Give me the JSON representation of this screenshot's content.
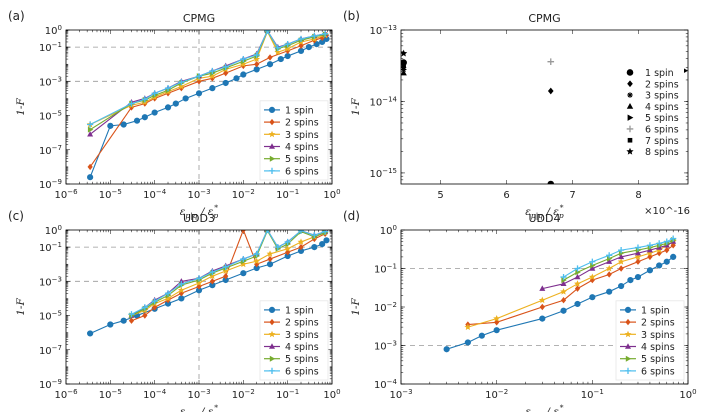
{
  "chart_data": [
    {
      "id": "a",
      "type": "line",
      "label": "(a)",
      "title": "CPMG",
      "xlabel": "ε_{p|q} / ε*_p",
      "ylabel": "1-F",
      "xscale": "log",
      "yscale": "log",
      "xlim": [
        1e-06,
        1
      ],
      "ylim": [
        1e-09,
        1
      ],
      "xticks": [
        1e-06,
        1e-05,
        0.0001,
        0.001,
        0.01,
        0.1,
        1
      ],
      "xtick_labels": [
        "10^-6",
        "10^-5",
        "10^-4",
        "10^-3",
        "10^-2",
        "10^-1",
        "10^0"
      ],
      "yticks": [
        1e-09,
        1e-07,
        1e-05,
        0.001,
        0.1,
        1
      ],
      "ytick_labels": [
        "10^-9",
        "10^-7",
        "10^-5",
        "10^-3",
        "10^-1",
        "10^0"
      ],
      "hlines": [
        0.1,
        0.001
      ],
      "vlines": [
        0.001
      ],
      "legend_position": "right",
      "series": [
        {
          "name": "1 spin",
          "color": "#1f77b4",
          "marker": "circle",
          "x": [
            3.5e-06,
            1e-05,
            2e-05,
            4e-05,
            6e-05,
            0.0001,
            0.0002,
            0.0003,
            0.0005,
            0.001,
            0.002,
            0.004,
            0.007,
            0.01,
            0.02,
            0.04,
            0.07,
            0.1,
            0.2,
            0.3,
            0.45,
            0.6,
            0.75
          ],
          "y": [
            2.5e-09,
            2.5e-06,
            3e-06,
            5e-06,
            8e-06,
            1.5e-05,
            3e-05,
            5e-05,
            0.0001,
            0.0002,
            0.0004,
            0.0008,
            0.0015,
            0.0025,
            0.005,
            0.01,
            0.02,
            0.03,
            0.06,
            0.1,
            0.15,
            0.2,
            0.3
          ]
        },
        {
          "name": "2 spins",
          "color": "#d95319",
          "marker": "diamond",
          "x": [
            3.5e-06,
            3e-05,
            6e-05,
            0.0001,
            0.0002,
            0.0004,
            0.001,
            0.002,
            0.004,
            0.01,
            0.02,
            0.04,
            0.1,
            0.2,
            0.4,
            0.6,
            0.75
          ],
          "y": [
            1e-08,
            3e-05,
            5e-05,
            0.0001,
            0.0002,
            0.0004,
            0.001,
            0.0015,
            0.003,
            0.008,
            0.01,
            0.025,
            0.06,
            0.12,
            0.25,
            0.35,
            0.5
          ]
        },
        {
          "name": "3 spins",
          "color": "#edb120",
          "marker": "star",
          "x": [
            3.5e-06,
            3e-05,
            6e-05,
            0.0001,
            0.0002,
            0.0004,
            0.001,
            0.002,
            0.004,
            0.01,
            0.02,
            0.035,
            0.06,
            0.1,
            0.2,
            0.4,
            0.7
          ],
          "y": [
            3e-06,
            4e-05,
            6e-05,
            0.00012,
            0.00025,
            0.0005,
            0.0015,
            0.002,
            0.005,
            0.01,
            0.02,
            0.8,
            0.05,
            0.08,
            0.2,
            0.3,
            0.5
          ]
        },
        {
          "name": "4 spins",
          "color": "#7e2f8e",
          "marker": "triangle",
          "x": [
            3.5e-06,
            3e-05,
            6e-05,
            0.0001,
            0.0002,
            0.0004,
            0.001,
            0.002,
            0.004,
            0.01,
            0.02,
            0.035,
            0.06,
            0.1,
            0.2,
            0.4,
            0.7
          ],
          "y": [
            8e-07,
            6e-05,
            0.0001,
            0.0002,
            0.0004,
            0.001,
            0.002,
            0.004,
            0.008,
            0.02,
            0.04,
            0.9,
            0.1,
            0.15,
            0.3,
            0.45,
            0.6
          ]
        },
        {
          "name": "5 spins",
          "color": "#77ac30",
          "marker": "triangle-right",
          "x": [
            3.5e-06,
            3e-05,
            6e-05,
            0.0001,
            0.0002,
            0.0004,
            0.001,
            0.002,
            0.004,
            0.01,
            0.02,
            0.035,
            0.06,
            0.1,
            0.2,
            0.4,
            0.7
          ],
          "y": [
            1.5e-06,
            5e-05,
            8e-05,
            0.00015,
            0.0003,
            0.0008,
            0.002,
            0.003,
            0.006,
            0.015,
            0.03,
            0.85,
            0.08,
            0.12,
            0.25,
            0.4,
            0.55
          ]
        },
        {
          "name": "6 spins",
          "color": "#4dbeee",
          "marker": "plus",
          "x": [
            3.5e-06,
            3e-05,
            6e-05,
            0.0001,
            0.0002,
            0.0004,
            0.001,
            0.002,
            0.004,
            0.01,
            0.02,
            0.035,
            0.06,
            0.1,
            0.2,
            0.4,
            0.7
          ],
          "y": [
            3e-06,
            5e-05,
            9e-05,
            0.0002,
            0.0004,
            0.0009,
            0.002,
            0.004,
            0.007,
            0.02,
            0.035,
            0.9,
            0.09,
            0.15,
            0.3,
            0.45,
            0.6
          ]
        }
      ]
    },
    {
      "id": "b",
      "type": "scatter",
      "label": "(b)",
      "title": "CPMG",
      "xlabel": "ε_{p|q} / ε*_p",
      "ylabel": "1-F",
      "xscale": "linear",
      "yscale": "log",
      "xlim": [
        4.4,
        8.75
      ],
      "ylim": [
        7e-16,
        1e-13
      ],
      "xticks": [
        5,
        6,
        7,
        8
      ],
      "xtick_labels": [
        "5",
        "6",
        "7",
        "8"
      ],
      "x_multiplier": "×10^-16",
      "yticks": [
        1e-15,
        1e-14,
        1e-13
      ],
      "ytick_labels": [
        "10^-15",
        "10^-14",
        "10^-13"
      ],
      "legend_position": "right",
      "series": [
        {
          "name": "1 spin",
          "color": "#000000",
          "marker": "circle",
          "x": [
            4.44,
            6.67
          ],
          "y": [
            3.5e-14,
            7e-16
          ]
        },
        {
          "name": "2 spins",
          "color": "#000000",
          "marker": "diamond",
          "x": [
            4.44,
            6.67
          ],
          "y": [
            3e-14,
            1.4e-14
          ]
        },
        {
          "name": "3 spins",
          "color": "#000000",
          "marker": "asterisk",
          "x": [
            4.44
          ],
          "y": [
            2.8e-14
          ]
        },
        {
          "name": "4 spins",
          "color": "#000000",
          "marker": "triangle",
          "x": [
            4.44
          ],
          "y": [
            2.5e-14
          ]
        },
        {
          "name": "5 spins",
          "color": "#000000",
          "marker": "triangle-right",
          "x": [
            8.7
          ],
          "y": [
            2.7e-14
          ]
        },
        {
          "name": "6 spins",
          "color": "#999999",
          "marker": "plus",
          "x": [
            6.67
          ],
          "y": [
            3.6e-14
          ]
        },
        {
          "name": "7 spins",
          "color": "#000000",
          "marker": "square",
          "x": [
            4.44
          ],
          "y": [
            3.2e-14
          ]
        },
        {
          "name": "8 spins",
          "color": "#000000",
          "marker": "pentagram",
          "x": [
            4.44
          ],
          "y": [
            4.7e-14
          ]
        }
      ]
    },
    {
      "id": "c",
      "type": "line",
      "label": "(c)",
      "title": "UDD3",
      "xlabel": "ε_{p|q} / ε*_p",
      "ylabel": "1-F",
      "xscale": "log",
      "yscale": "log",
      "xlim": [
        1e-06,
        1
      ],
      "ylim": [
        1e-09,
        1
      ],
      "xticks": [
        1e-06,
        1e-05,
        0.0001,
        0.001,
        0.01,
        0.1,
        1
      ],
      "xtick_labels": [
        "10^-6",
        "10^-5",
        "10^-4",
        "10^-3",
        "10^-2",
        "10^-1",
        "10^0"
      ],
      "yticks": [
        1e-09,
        1e-07,
        1e-05,
        0.001,
        0.1,
        1
      ],
      "ytick_labels": [
        "10^-9",
        "10^-7",
        "10^-5",
        "10^-3",
        "10^-1",
        "10^0"
      ],
      "hlines": [
        0.1,
        0.001
      ],
      "vlines": [
        0.001
      ],
      "legend_position": "right",
      "series": [
        {
          "name": "1 spin",
          "color": "#1f77b4",
          "marker": "circle",
          "x": [
            3.5e-06,
            1e-05,
            2e-05,
            4e-05,
            0.0001,
            0.0002,
            0.0004,
            0.001,
            0.002,
            0.004,
            0.01,
            0.02,
            0.04,
            0.1,
            0.2,
            0.4,
            0.6,
            0.75
          ],
          "y": [
            9e-07,
            3e-06,
            5e-06,
            1e-05,
            2.5e-05,
            5e-05,
            0.0001,
            0.0003,
            0.0006,
            0.0012,
            0.003,
            0.006,
            0.01,
            0.03,
            0.06,
            0.1,
            0.15,
            0.25
          ]
        },
        {
          "name": "2 spins",
          "color": "#d95319",
          "marker": "diamond",
          "x": [
            3e-05,
            6e-05,
            0.0001,
            0.0002,
            0.0004,
            0.001,
            0.002,
            0.004,
            0.01,
            0.02,
            0.04,
            0.1,
            0.2,
            0.4,
            0.7
          ],
          "y": [
            5e-06,
            1e-05,
            3e-05,
            8e-05,
            0.0002,
            0.0005,
            0.001,
            0.002,
            1.0,
            0.01,
            0.02,
            0.05,
            0.1,
            0.3,
            0.6
          ]
        },
        {
          "name": "3 spins",
          "color": "#edb120",
          "marker": "star",
          "x": [
            3e-05,
            6e-05,
            0.0001,
            0.0002,
            0.0004,
            0.001,
            0.002,
            0.004,
            0.01,
            0.02,
            0.04,
            0.1,
            0.2,
            0.4,
            0.7
          ],
          "y": [
            1e-05,
            2e-05,
            5e-05,
            0.0001,
            0.0003,
            0.0008,
            0.002,
            0.004,
            0.01,
            0.015,
            0.04,
            0.08,
            0.2,
            0.4,
            0.7
          ]
        },
        {
          "name": "4 spins",
          "color": "#7e2f8e",
          "marker": "triangle",
          "x": [
            3e-05,
            6e-05,
            0.0001,
            0.0002,
            0.0004,
            0.001,
            0.002,
            0.004,
            0.01,
            0.02,
            0.035,
            0.06,
            0.1,
            0.2,
            0.4,
            0.7
          ],
          "y": [
            1e-05,
            3e-05,
            8e-05,
            0.0002,
            0.001,
            0.0015,
            0.004,
            0.008,
            0.02,
            0.04,
            1.0,
            0.1,
            0.2,
            0.9,
            0.5,
            0.8
          ]
        },
        {
          "name": "5 spins",
          "color": "#77ac30",
          "marker": "triangle-right",
          "x": [
            3e-05,
            6e-05,
            0.0001,
            0.0002,
            0.0004,
            0.001,
            0.002,
            0.004,
            0.01,
            0.02,
            0.035,
            0.06,
            0.1,
            0.2,
            0.4,
            0.7
          ],
          "y": [
            1e-05,
            2.5e-05,
            6e-05,
            0.00015,
            0.0006,
            0.0012,
            0.003,
            0.006,
            0.015,
            0.03,
            0.9,
            0.08,
            0.15,
            0.8,
            0.4,
            0.7
          ]
        },
        {
          "name": "6 spins",
          "color": "#4dbeee",
          "marker": "plus",
          "x": [
            3e-05,
            6e-05,
            0.0001,
            0.0002,
            0.0004,
            0.001,
            0.002,
            0.004,
            0.01,
            0.02,
            0.035,
            0.06,
            0.1,
            0.2,
            0.4,
            0.7
          ],
          "y": [
            1.2e-05,
            3e-05,
            7e-05,
            0.0002,
            0.0007,
            0.0015,
            0.0035,
            0.007,
            0.02,
            0.04,
            1.0,
            0.1,
            0.2,
            0.9,
            0.5,
            0.8
          ]
        }
      ]
    },
    {
      "id": "d",
      "type": "line",
      "label": "(d)",
      "title": "UDD4",
      "xlabel": "ε_{p|q} / ε*_p",
      "ylabel": "1-F",
      "xscale": "log",
      "yscale": "log",
      "xlim": [
        0.001,
        1
      ],
      "ylim": [
        0.0001,
        1
      ],
      "xticks": [
        0.001,
        0.01,
        0.1,
        1
      ],
      "xtick_labels": [
        "10^-3",
        "10^-2",
        "10^-1",
        "10^0"
      ],
      "yticks": [
        0.0001,
        0.001,
        0.01,
        0.1,
        1
      ],
      "ytick_labels": [
        "10^-4",
        "10^-3",
        "10^-2",
        "10^-1",
        "10^0"
      ],
      "hlines": [
        0.1,
        0.001
      ],
      "legend_position": "right",
      "series": [
        {
          "name": "1 spin",
          "color": "#1f77b4",
          "marker": "circle",
          "x": [
            0.003,
            0.005,
            0.007,
            0.01,
            0.03,
            0.05,
            0.07,
            0.1,
            0.15,
            0.2,
            0.25,
            0.3,
            0.4,
            0.5,
            0.6,
            0.7
          ],
          "y": [
            0.0008,
            0.0012,
            0.0018,
            0.0025,
            0.005,
            0.008,
            0.012,
            0.018,
            0.025,
            0.035,
            0.05,
            0.06,
            0.09,
            0.12,
            0.15,
            0.2
          ]
        },
        {
          "name": "2 spins",
          "color": "#d95319",
          "marker": "diamond",
          "x": [
            0.005,
            0.01,
            0.03,
            0.05,
            0.07,
            0.1,
            0.15,
            0.2,
            0.3,
            0.4,
            0.5,
            0.6,
            0.7
          ],
          "y": [
            0.0035,
            0.004,
            0.01,
            0.015,
            0.03,
            0.05,
            0.07,
            0.1,
            0.15,
            0.2,
            0.25,
            0.3,
            0.4
          ]
        },
        {
          "name": "3 spins",
          "color": "#edb120",
          "marker": "star",
          "x": [
            0.005,
            0.01,
            0.03,
            0.05,
            0.07,
            0.1,
            0.15,
            0.2,
            0.3,
            0.4,
            0.5,
            0.6,
            0.7
          ],
          "y": [
            0.003,
            0.005,
            0.015,
            0.025,
            0.04,
            0.06,
            0.1,
            0.15,
            0.2,
            0.25,
            0.3,
            0.4,
            0.5
          ]
        },
        {
          "name": "4 spins",
          "color": "#7e2f8e",
          "marker": "triangle",
          "x": [
            0.03,
            0.05,
            0.07,
            0.1,
            0.15,
            0.2,
            0.3,
            0.4,
            0.5,
            0.6,
            0.7
          ],
          "y": [
            0.03,
            0.04,
            0.06,
            0.1,
            0.15,
            0.2,
            0.25,
            0.3,
            0.35,
            0.4,
            0.5
          ]
        },
        {
          "name": "5 spins",
          "color": "#77ac30",
          "marker": "triangle-right",
          "x": [
            0.05,
            0.07,
            0.1,
            0.15,
            0.2,
            0.3,
            0.4,
            0.5,
            0.6,
            0.7
          ],
          "y": [
            0.05,
            0.08,
            0.12,
            0.18,
            0.25,
            0.3,
            0.35,
            0.4,
            0.45,
            0.55
          ]
        },
        {
          "name": "6 spins",
          "color": "#4dbeee",
          "marker": "plus",
          "x": [
            0.05,
            0.07,
            0.1,
            0.15,
            0.2,
            0.3,
            0.4,
            0.5,
            0.6,
            0.7
          ],
          "y": [
            0.06,
            0.1,
            0.15,
            0.22,
            0.3,
            0.35,
            0.4,
            0.45,
            0.5,
            0.6
          ]
        }
      ]
    }
  ]
}
